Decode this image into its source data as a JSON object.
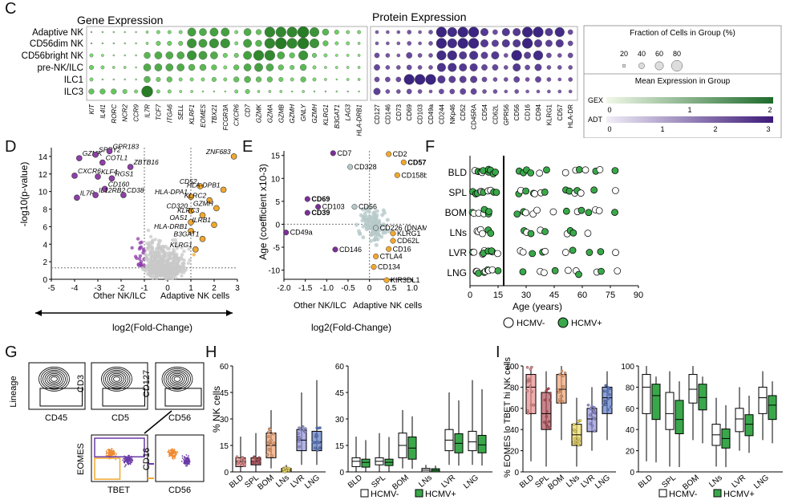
{
  "panels": {
    "C": {
      "letter": "C",
      "gene_title": "Gene Expression",
      "protein_title": "Protein Expression",
      "rows": [
        "Adaptive NK",
        "CD56dim NK",
        "CD56bright NK",
        "pre-NK/ILC",
        "ILC1",
        "ILC3"
      ],
      "genes": [
        "KIT",
        "IL4I1",
        "RORC",
        "NCR2",
        "CCR9",
        "IL7R",
        "TCF7",
        "ITGA6",
        "SELL",
        "KLRF1",
        "EOMES",
        "TBX21",
        "FCGR3A",
        "CXCR6",
        "CD7",
        "GZMK",
        "GZMA",
        "GZMB",
        "GZMH",
        "GNLY",
        "GZMH",
        "KLRG1",
        "B3GAT1",
        "LAG3",
        "HLA-DRB1"
      ],
      "proteins": [
        "CD127",
        "CD146",
        "CD73",
        "CD69",
        "CD103",
        "CD49a",
        "CD244",
        "NKp46",
        "CD52",
        "CD45RA",
        "CD54",
        "CD62L",
        "GPR56",
        "CD56",
        "CD16",
        "CD94",
        "KLRG1",
        "CD57",
        "HLA-DR"
      ],
      "legend_fraction_title": "Fraction of Cells in Group (%)",
      "legend_fraction_ticks": [
        "20",
        "40",
        "60",
        "80"
      ],
      "legend_mean_title": "Mean Expression in Group",
      "legend_gex": "GEX",
      "legend_gex_ticks": [
        "0",
        "1",
        "2"
      ],
      "legend_adt": "ADT",
      "legend_adt_ticks": [
        "0",
        "1",
        "2",
        "3"
      ],
      "colors": {
        "gene": "#1e6b2c",
        "protein": "#3d1a78"
      }
    },
    "D": {
      "letter": "D",
      "ylabel": "-log10(p-value)",
      "xlabel": "log2(Fold-Change)",
      "left_group": "Other NK/ILC",
      "right_group": "Adaptive NK cells",
      "labels": [
        "GZMK",
        "SPRY2",
        "GPR183",
        "COTL1",
        "CXCR6",
        "KLF4",
        "ZBTB16",
        "RGS1",
        "CD160",
        "IL7R",
        "IL12RB2",
        "CD38",
        "ZNF683",
        "CD52",
        "HLA-DPB1",
        "HLA-DPA1",
        "KLRC2",
        "GZMH",
        "CD320",
        "KLRC3",
        "OAS1",
        "ILRB1",
        "HLA-DRB1",
        "B3GAT1",
        "KLRG1"
      ],
      "colors": {
        "down": "#8e3fa8",
        "up": "#f0a830",
        "ns": "#c8c8c8"
      }
    },
    "E": {
      "letter": "E",
      "ylabel": "Age (coefficient x10-3)",
      "xlabel": "log2(Fold-Change)",
      "left_group": "Other NK/ILC",
      "right_group": "Adaptive NK cells",
      "labels": [
        "CD7",
        "CD2",
        "CD57",
        "CD328",
        "CD158b",
        "CD69",
        "CD103",
        "CD56",
        "CD39",
        "CD49a",
        "CD226 (DNAM1)",
        "KLRG1",
        "CD62L",
        "CD16",
        "CTLA4",
        "CD146",
        "CD134",
        "KIR3DL1"
      ]
    },
    "F": {
      "letter": "F",
      "rows": [
        "BLD",
        "SPL",
        "BOM",
        "LNs",
        "LVR",
        "LNG"
      ],
      "xlabel": "Age (years)",
      "xticks": [
        "0",
        "15",
        "30",
        "45",
        "60",
        "75",
        "90"
      ],
      "legend_neg": "HCMV-",
      "legend_pos": "HCMV+"
    },
    "G": {
      "letter": "G",
      "labels": [
        "Lineage",
        "CD45",
        "CD3",
        "CD5",
        "CD127",
        "CD56",
        "EOMES",
        "TBET",
        "CD16",
        "CD56"
      ]
    },
    "H": {
      "letter": "H",
      "ylabel": "% NK cells",
      "yticks": [
        "0",
        "15",
        "30",
        "45",
        "60"
      ],
      "cats": [
        "BLD",
        "SPL",
        "BOM",
        "LNs",
        "LVR",
        "LNG"
      ],
      "legend_neg": "HCMV-",
      "legend_pos": "HCMV+"
    },
    "I": {
      "letter": "I",
      "ylabel": "% EOMES lo TBET hi NK cells",
      "yticks": [
        "0",
        "20",
        "40",
        "60",
        "80",
        "100"
      ],
      "cats": [
        "BLD",
        "SPL",
        "BOM",
        "LNs",
        "LVR",
        "LNG"
      ],
      "legend_neg": "HCMV-",
      "legend_pos": "HCMV+"
    }
  }
}
